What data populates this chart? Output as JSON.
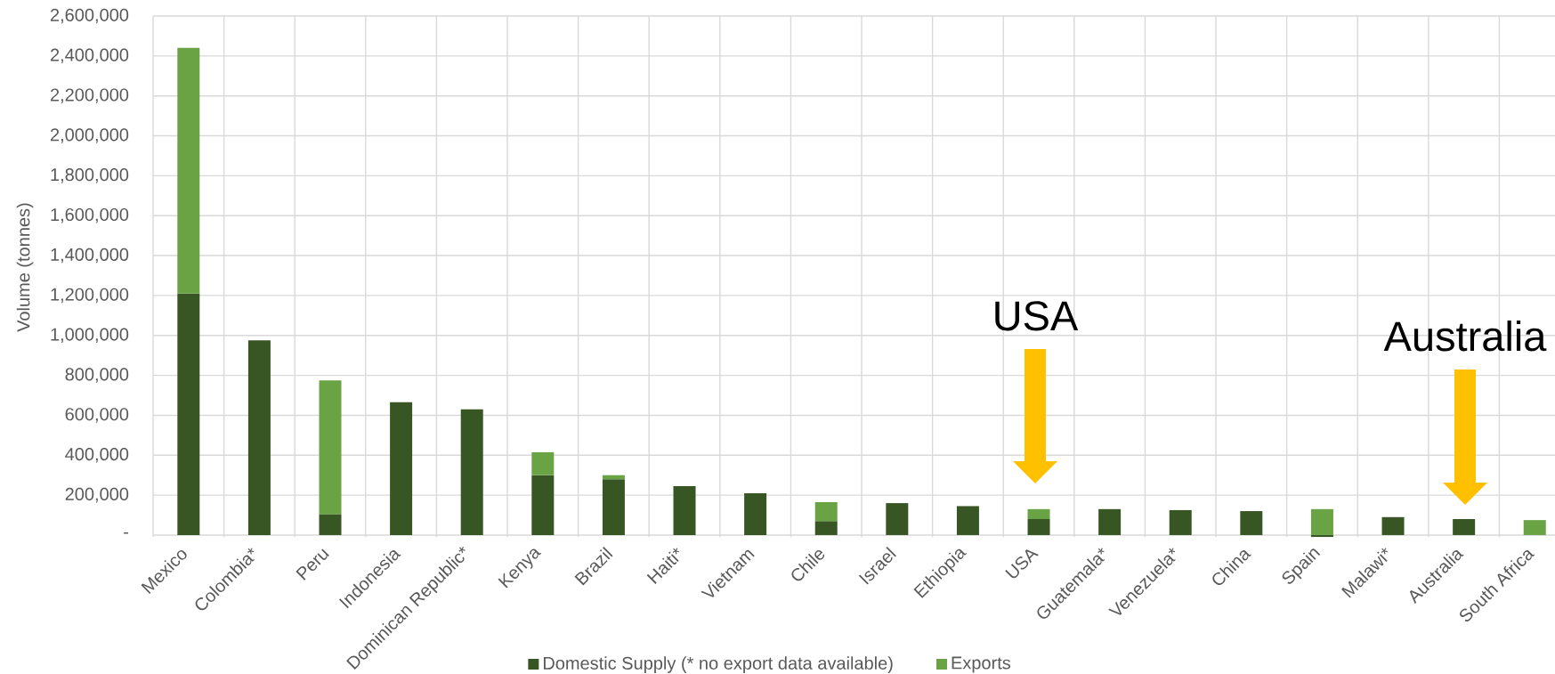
{
  "chart_data": {
    "type": "bar",
    "stacked": true,
    "categories": [
      "Mexico",
      "Colombia*",
      "Peru",
      "Indonesia",
      "Dominican Republic*",
      "Kenya",
      "Brazil",
      "Haiti*",
      "Vietnam",
      "Chile",
      "Israel",
      "Ethiopia",
      "USA",
      "Guatemala*",
      "Venezuela*",
      "China",
      "Spain",
      "Malawi*",
      "Australia",
      "South Africa"
    ],
    "series": [
      {
        "name": "Domestic Supply (* no export data available)",
        "color": "#375623",
        "values": [
          1210000,
          975000,
          105000,
          665000,
          630000,
          300000,
          280000,
          245000,
          210000,
          70000,
          160000,
          145000,
          80000,
          130000,
          125000,
          120000,
          -10000,
          90000,
          80000,
          null
        ]
      },
      {
        "name": "Exports",
        "color": "#6aa343",
        "values": [
          1230000,
          null,
          670000,
          null,
          null,
          115000,
          20000,
          null,
          null,
          95000,
          null,
          null,
          50000,
          null,
          null,
          null,
          130000,
          null,
          null,
          75000
        ]
      }
    ],
    "ylabel": "Volume (tonnes)",
    "ylim": [
      -10000,
      2600000
    ],
    "yticks": [
      {
        "value": 0,
        "label": "-"
      },
      {
        "value": 200000,
        "label": "200,000"
      },
      {
        "value": 400000,
        "label": "400,000"
      },
      {
        "value": 600000,
        "label": "600,000"
      },
      {
        "value": 800000,
        "label": "800,000"
      },
      {
        "value": 1000000,
        "label": "1,000,000"
      },
      {
        "value": 1200000,
        "label": "1,200,000"
      },
      {
        "value": 1400000,
        "label": "1,400,000"
      },
      {
        "value": 1600000,
        "label": "1,600,000"
      },
      {
        "value": 1800000,
        "label": "1,800,000"
      },
      {
        "value": 2000000,
        "label": "2,000,000"
      },
      {
        "value": 2200000,
        "label": "2,200,000"
      },
      {
        "value": 2400000,
        "label": "2,400,000"
      },
      {
        "value": 2600000,
        "label": "2,600,000"
      }
    ],
    "grid": true,
    "legend": "bottom",
    "annotations": [
      "USA",
      "Australia"
    ]
  }
}
